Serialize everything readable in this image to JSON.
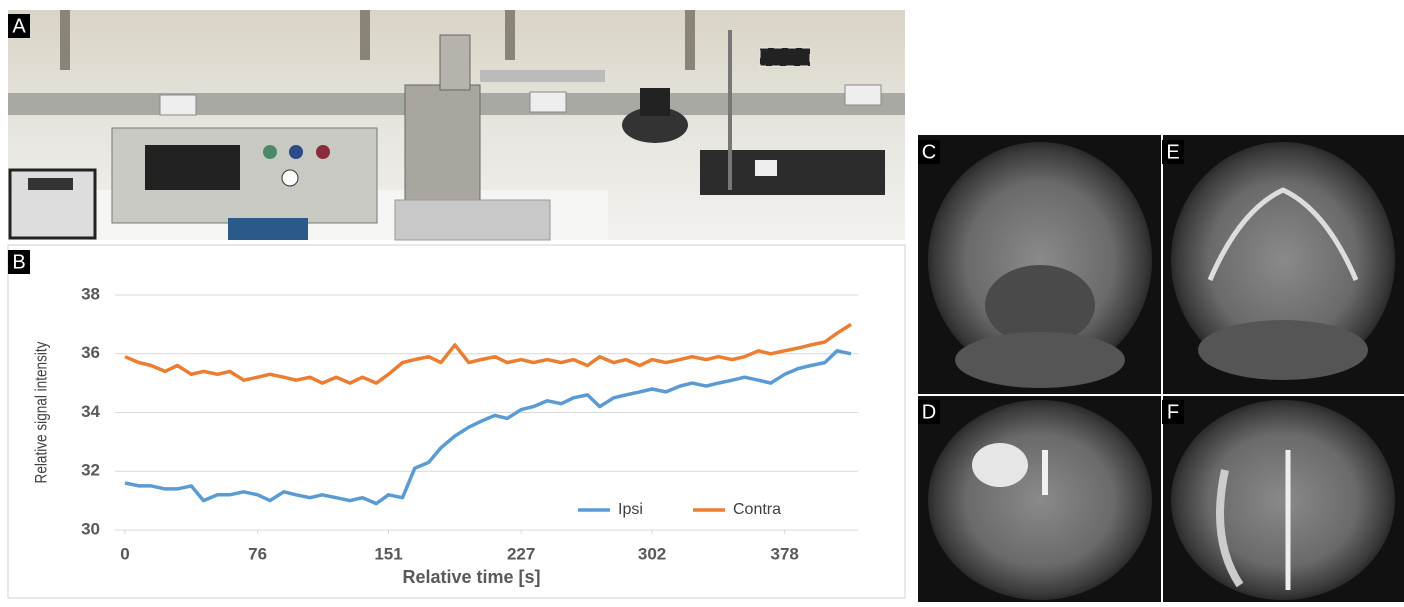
{
  "panel_labels": [
    "A",
    "B",
    "C",
    "D",
    "E",
    "F"
  ],
  "chart_data": {
    "type": "line",
    "xlabel": "Relative time [s]",
    "ylabel": "Relative signal intensity",
    "x": [
      0,
      8,
      15,
      23,
      30,
      38,
      45,
      53,
      60,
      68,
      76,
      83,
      91,
      98,
      106,
      113,
      121,
      129,
      136,
      144,
      151,
      159,
      166,
      174,
      181,
      189,
      197,
      204,
      212,
      219,
      227,
      234,
      242,
      250,
      257,
      265,
      272,
      280,
      287,
      295,
      302,
      310,
      318,
      325,
      333,
      340,
      348,
      355,
      363,
      370,
      378,
      386,
      393,
      401,
      408,
      416
    ],
    "series": [
      {
        "name": "Ipsi",
        "color": "#5b9bd5",
        "values": [
          31.6,
          31.5,
          31.5,
          31.4,
          31.4,
          31.5,
          31.0,
          31.2,
          31.2,
          31.3,
          31.2,
          31.0,
          31.3,
          31.2,
          31.1,
          31.2,
          31.1,
          31.0,
          31.1,
          30.9,
          31.2,
          31.1,
          32.1,
          32.3,
          32.8,
          33.2,
          33.5,
          33.7,
          33.9,
          33.8,
          34.1,
          34.2,
          34.4,
          34.3,
          34.5,
          34.6,
          34.2,
          34.5,
          34.6,
          34.7,
          34.8,
          34.7,
          34.9,
          35.0,
          34.9,
          35.0,
          35.1,
          35.2,
          35.1,
          35.0,
          35.3,
          35.5,
          35.6,
          35.7,
          36.1,
          36.0
        ]
      },
      {
        "name": "Contra",
        "color": "#ed7d31",
        "values": [
          35.9,
          35.7,
          35.6,
          35.4,
          35.6,
          35.3,
          35.4,
          35.3,
          35.4,
          35.1,
          35.2,
          35.3,
          35.2,
          35.1,
          35.2,
          35.0,
          35.2,
          35.0,
          35.2,
          35.0,
          35.3,
          35.7,
          35.8,
          35.9,
          35.7,
          36.3,
          35.7,
          35.8,
          35.9,
          35.7,
          35.8,
          35.7,
          35.8,
          35.7,
          35.8,
          35.6,
          35.9,
          35.7,
          35.8,
          35.6,
          35.8,
          35.7,
          35.8,
          35.9,
          35.8,
          35.9,
          35.8,
          35.9,
          36.1,
          36.0,
          36.1,
          36.2,
          36.3,
          36.4,
          36.7,
          37.0
        ]
      }
    ],
    "xlim": [
      0,
      420
    ],
    "xticks": [
      0,
      76,
      151,
      227,
      302,
      378
    ],
    "ylim": [
      30,
      38
    ],
    "yticks": [
      30,
      32,
      34,
      36,
      38
    ],
    "grid": true,
    "legend": "lower right"
  }
}
